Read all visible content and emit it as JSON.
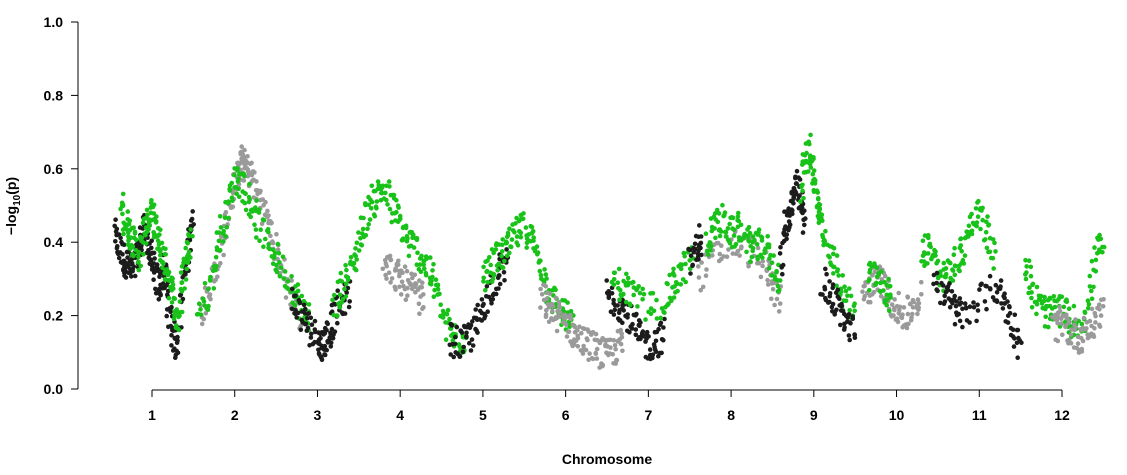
{
  "chart_data": {
    "type": "scatter",
    "title": "",
    "xlabel": "Chromosome",
    "ylabel_parts": {
      "prefix": "−log",
      "sub": "10",
      "suffix": "(p)"
    },
    "ylim": [
      0,
      1.0
    ],
    "yticks": [
      "0.0",
      "0.2",
      "0.4",
      "0.6",
      "0.8",
      "1.0"
    ],
    "xticks": [
      "1",
      "2",
      "3",
      "4",
      "5",
      "6",
      "7",
      "8",
      "9",
      "10",
      "11",
      "12"
    ],
    "grid": false,
    "legend": "none",
    "colors": {
      "black": "#1c1c1c",
      "gray": "#9a9a9a",
      "green": "#18c218"
    },
    "series": [
      {
        "color": "black",
        "points": [
          [
            0.55,
            0.42
          ],
          [
            0.6,
            0.38
          ],
          [
            0.65,
            0.36
          ],
          [
            0.7,
            0.34
          ],
          [
            0.75,
            0.32
          ],
          [
            0.8,
            0.35
          ],
          [
            0.85,
            0.38
          ],
          [
            0.9,
            0.44
          ],
          [
            0.95,
            0.4
          ],
          [
            1.0,
            0.34
          ],
          [
            1.05,
            0.3
          ],
          [
            1.1,
            0.28
          ],
          [
            1.15,
            0.33
          ],
          [
            1.2,
            0.22
          ],
          [
            1.25,
            0.15
          ],
          [
            1.3,
            0.12
          ],
          [
            1.4,
            0.32
          ],
          [
            1.45,
            0.4
          ],
          [
            1.5,
            0.46
          ]
        ]
      },
      {
        "color": "green",
        "points": [
          [
            0.62,
            0.5
          ],
          [
            0.68,
            0.46
          ],
          [
            0.72,
            0.43
          ],
          [
            0.78,
            0.4
          ],
          [
            0.85,
            0.36
          ],
          [
            0.92,
            0.44
          ],
          [
            0.98,
            0.48
          ],
          [
            1.02,
            0.45
          ],
          [
            1.08,
            0.4
          ],
          [
            1.12,
            0.36
          ],
          [
            1.18,
            0.33
          ],
          [
            1.25,
            0.25
          ],
          [
            1.32,
            0.18
          ],
          [
            1.38,
            0.3
          ],
          [
            1.42,
            0.38
          ],
          [
            1.48,
            0.42
          ]
        ]
      },
      {
        "color": "gray",
        "points": [
          [
            1.6,
            0.2
          ],
          [
            1.7,
            0.28
          ],
          [
            1.8,
            0.35
          ],
          [
            1.9,
            0.45
          ],
          [
            2.0,
            0.55
          ],
          [
            2.05,
            0.6
          ],
          [
            2.1,
            0.62
          ],
          [
            2.15,
            0.6
          ],
          [
            2.2,
            0.58
          ],
          [
            2.3,
            0.52
          ],
          [
            2.4,
            0.46
          ],
          [
            2.5,
            0.38
          ],
          [
            2.6,
            0.3
          ],
          [
            2.7,
            0.25
          ],
          [
            2.8,
            0.18
          ]
        ]
      },
      {
        "color": "green",
        "points": [
          [
            1.55,
            0.22
          ],
          [
            1.7,
            0.26
          ],
          [
            1.8,
            0.4
          ],
          [
            1.9,
            0.48
          ],
          [
            2.0,
            0.58
          ],
          [
            2.1,
            0.56
          ],
          [
            2.2,
            0.5
          ],
          [
            2.3,
            0.44
          ],
          [
            2.45,
            0.38
          ],
          [
            2.55,
            0.34
          ],
          [
            2.7,
            0.28
          ],
          [
            2.8,
            0.22
          ],
          [
            2.9,
            0.2
          ]
        ]
      },
      {
        "color": "black",
        "points": [
          [
            2.7,
            0.24
          ],
          [
            2.8,
            0.2
          ],
          [
            2.9,
            0.17
          ],
          [
            3.0,
            0.14
          ],
          [
            3.05,
            0.12
          ],
          [
            3.1,
            0.13
          ],
          [
            3.15,
            0.16
          ],
          [
            3.2,
            0.2
          ],
          [
            3.3,
            0.24
          ],
          [
            3.4,
            0.26
          ]
        ]
      },
      {
        "color": "green",
        "points": [
          [
            3.2,
            0.22
          ],
          [
            3.3,
            0.28
          ],
          [
            3.4,
            0.32
          ],
          [
            3.5,
            0.4
          ],
          [
            3.6,
            0.48
          ],
          [
            3.7,
            0.52
          ],
          [
            3.8,
            0.55
          ],
          [
            3.9,
            0.5
          ],
          [
            4.0,
            0.45
          ],
          [
            4.1,
            0.4
          ],
          [
            4.2,
            0.38
          ],
          [
            4.3,
            0.34
          ],
          [
            4.4,
            0.3
          ],
          [
            4.5,
            0.22
          ],
          [
            4.6,
            0.15
          ],
          [
            4.7,
            0.13
          ],
          [
            4.8,
            0.14
          ]
        ]
      },
      {
        "color": "gray",
        "points": [
          [
            3.8,
            0.35
          ],
          [
            3.9,
            0.32
          ],
          [
            4.0,
            0.3
          ],
          [
            4.1,
            0.28
          ],
          [
            4.2,
            0.26
          ],
          [
            4.3,
            0.24
          ]
        ]
      },
      {
        "color": "black",
        "points": [
          [
            4.6,
            0.14
          ],
          [
            4.7,
            0.12
          ],
          [
            4.8,
            0.13
          ],
          [
            4.9,
            0.16
          ],
          [
            5.0,
            0.22
          ],
          [
            5.1,
            0.28
          ],
          [
            5.2,
            0.32
          ],
          [
            5.3,
            0.34
          ]
        ]
      },
      {
        "color": "green",
        "points": [
          [
            5.0,
            0.3
          ],
          [
            5.1,
            0.34
          ],
          [
            5.2,
            0.36
          ],
          [
            5.3,
            0.38
          ],
          [
            5.4,
            0.42
          ],
          [
            5.5,
            0.44
          ],
          [
            5.6,
            0.4
          ],
          [
            5.7,
            0.34
          ],
          [
            5.8,
            0.26
          ],
          [
            5.9,
            0.22
          ],
          [
            6.0,
            0.2
          ],
          [
            6.1,
            0.17
          ]
        ]
      },
      {
        "color": "gray",
        "points": [
          [
            5.7,
            0.25
          ],
          [
            5.8,
            0.22
          ],
          [
            5.9,
            0.2
          ],
          [
            6.0,
            0.18
          ],
          [
            6.1,
            0.15
          ],
          [
            6.2,
            0.13
          ],
          [
            6.3,
            0.12
          ],
          [
            6.4,
            0.1
          ],
          [
            6.5,
            0.09
          ],
          [
            6.6,
            0.11
          ],
          [
            6.7,
            0.13
          ]
        ]
      },
      {
        "color": "black",
        "points": [
          [
            6.5,
            0.26
          ],
          [
            6.6,
            0.24
          ],
          [
            6.7,
            0.22
          ],
          [
            6.8,
            0.18
          ],
          [
            6.9,
            0.14
          ],
          [
            7.0,
            0.12
          ],
          [
            7.1,
            0.13
          ],
          [
            7.2,
            0.15
          ]
        ]
      },
      {
        "color": "green",
        "points": [
          [
            6.55,
            0.3
          ],
          [
            6.7,
            0.28
          ],
          [
            6.8,
            0.26
          ],
          [
            7.0,
            0.22
          ],
          [
            7.2,
            0.24
          ],
          [
            7.3,
            0.28
          ],
          [
            7.4,
            0.32
          ],
          [
            7.55,
            0.36
          ]
        ]
      },
      {
        "color": "black",
        "points": [
          [
            7.5,
            0.34
          ],
          [
            7.6,
            0.38
          ],
          [
            7.65,
            0.42
          ]
        ]
      },
      {
        "color": "gray",
        "points": [
          [
            7.6,
            0.3
          ],
          [
            7.8,
            0.36
          ],
          [
            8.0,
            0.4
          ],
          [
            8.2,
            0.38
          ],
          [
            8.4,
            0.34
          ],
          [
            8.5,
            0.28
          ],
          [
            8.6,
            0.24
          ]
        ]
      },
      {
        "color": "green",
        "points": [
          [
            7.7,
            0.4
          ],
          [
            7.8,
            0.44
          ],
          [
            7.9,
            0.46
          ],
          [
            8.0,
            0.42
          ],
          [
            8.1,
            0.44
          ],
          [
            8.2,
            0.4
          ],
          [
            8.3,
            0.38
          ],
          [
            8.4,
            0.4
          ],
          [
            8.5,
            0.34
          ],
          [
            8.6,
            0.3
          ]
        ]
      },
      {
        "color": "black",
        "points": [
          [
            8.6,
            0.32
          ],
          [
            8.65,
            0.44
          ],
          [
            8.7,
            0.48
          ],
          [
            8.75,
            0.52
          ],
          [
            8.8,
            0.55
          ],
          [
            8.85,
            0.5
          ],
          [
            8.9,
            0.45
          ]
        ]
      },
      {
        "color": "green",
        "points": [
          [
            8.85,
            0.55
          ],
          [
            8.9,
            0.62
          ],
          [
            8.95,
            0.66
          ],
          [
            9.0,
            0.58
          ],
          [
            9.05,
            0.5
          ],
          [
            9.1,
            0.44
          ],
          [
            9.2,
            0.38
          ],
          [
            9.3,
            0.3
          ],
          [
            9.4,
            0.24
          ],
          [
            9.5,
            0.2
          ]
        ]
      },
      {
        "color": "black",
        "points": [
          [
            9.1,
            0.3
          ],
          [
            9.2,
            0.26
          ],
          [
            9.3,
            0.22
          ],
          [
            9.4,
            0.18
          ],
          [
            9.5,
            0.14
          ]
        ]
      },
      {
        "color": "gray",
        "points": [
          [
            9.6,
            0.26
          ],
          [
            9.7,
            0.28
          ],
          [
            9.8,
            0.3
          ],
          [
            9.9,
            0.26
          ],
          [
            10.0,
            0.22
          ],
          [
            10.1,
            0.2
          ],
          [
            10.2,
            0.22
          ],
          [
            10.3,
            0.26
          ]
        ]
      },
      {
        "color": "green",
        "points": [
          [
            9.65,
            0.3
          ],
          [
            9.75,
            0.32
          ],
          [
            9.85,
            0.28
          ],
          [
            9.95,
            0.24
          ]
        ]
      },
      {
        "color": "green",
        "points": [
          [
            10.3,
            0.36
          ],
          [
            10.4,
            0.4
          ],
          [
            10.5,
            0.34
          ],
          [
            10.6,
            0.3
          ],
          [
            10.7,
            0.34
          ],
          [
            10.8,
            0.38
          ],
          [
            10.9,
            0.44
          ],
          [
            11.0,
            0.48
          ],
          [
            11.1,
            0.42
          ],
          [
            11.2,
            0.36
          ]
        ]
      },
      {
        "color": "black",
        "points": [
          [
            10.45,
            0.3
          ],
          [
            10.6,
            0.26
          ],
          [
            10.7,
            0.22
          ],
          [
            10.8,
            0.2
          ],
          [
            11.0,
            0.24
          ],
          [
            11.2,
            0.28
          ],
          [
            11.3,
            0.24
          ],
          [
            11.4,
            0.18
          ],
          [
            11.5,
            0.12
          ]
        ]
      },
      {
        "color": "green",
        "points": [
          [
            11.55,
            0.34
          ],
          [
            11.65,
            0.26
          ],
          [
            11.75,
            0.22
          ],
          [
            11.85,
            0.2
          ],
          [
            11.95,
            0.22
          ],
          [
            12.05,
            0.2
          ],
          [
            12.15,
            0.18
          ],
          [
            12.3,
            0.2
          ],
          [
            12.4,
            0.36
          ],
          [
            12.5,
            0.4
          ]
        ]
      },
      {
        "color": "gray",
        "points": [
          [
            11.9,
            0.16
          ],
          [
            12.0,
            0.18
          ],
          [
            12.1,
            0.16
          ],
          [
            12.2,
            0.14
          ],
          [
            12.3,
            0.16
          ],
          [
            12.4,
            0.18
          ],
          [
            12.5,
            0.24
          ]
        ]
      }
    ]
  }
}
